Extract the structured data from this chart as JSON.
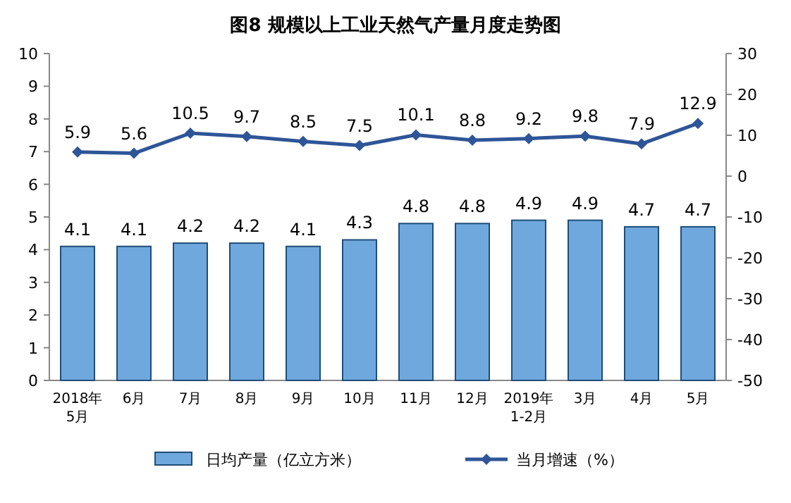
{
  "chart_data": {
    "type": "bar",
    "title": "图8  规模以上工业天然气产量月度走势图",
    "categories": [
      "2018年\n5月",
      "6月",
      "7月",
      "8月",
      "9月",
      "10月",
      "11月",
      "12月",
      "2019年\n1-2月",
      "3月",
      "4月",
      "5月"
    ],
    "series": [
      {
        "name": "日均产量（亿立方米）",
        "color": "#6fa8dc",
        "values": [
          4.1,
          4.1,
          4.2,
          4.2,
          4.1,
          4.3,
          4.8,
          4.8,
          4.9,
          4.9,
          4.7,
          4.7
        ]
      },
      {
        "name": "当月增速（%）",
        "type": "line",
        "axis": "y2",
        "color": "#2e5597",
        "values": [
          5.9,
          5.6,
          10.5,
          9.7,
          8.5,
          7.5,
          10.1,
          8.8,
          9.2,
          9.8,
          7.9,
          12.9
        ]
      }
    ],
    "ylim": [
      0,
      10
    ],
    "yticks": [
      0,
      1,
      2,
      3,
      4,
      5,
      6,
      7,
      8,
      9,
      10
    ],
    "y2lim": [
      -50,
      30
    ],
    "y2ticks": [
      -50,
      -40,
      -30,
      -20,
      -10,
      0,
      10,
      20,
      30
    ],
    "data_labels": true,
    "legend": "bottom",
    "marker": "diamond"
  }
}
